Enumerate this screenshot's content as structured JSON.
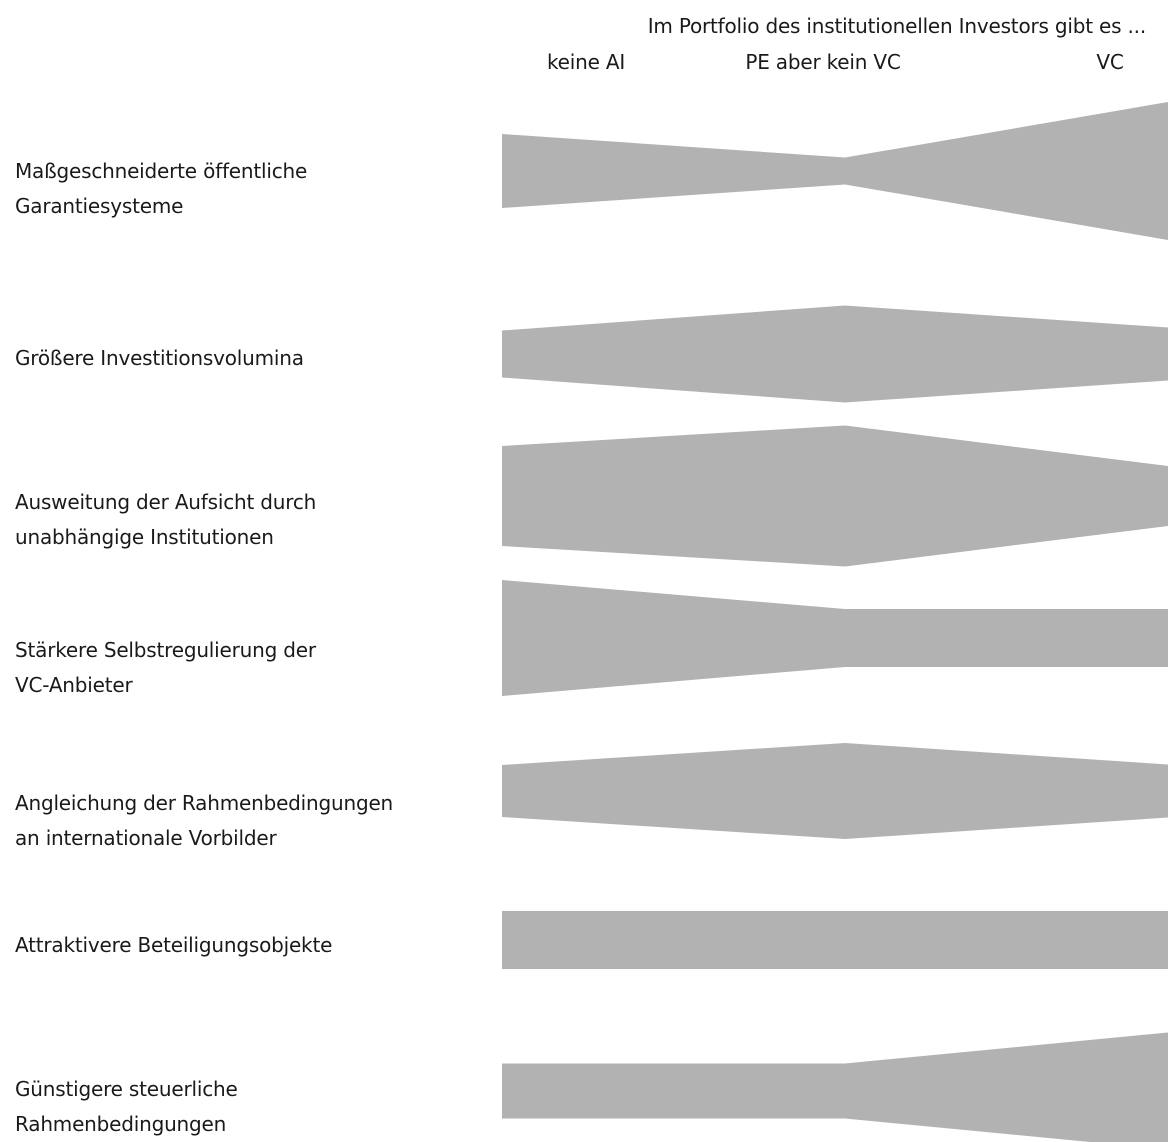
{
  "chart_data": {
    "type": "area",
    "title": "Im Portfolio des institutionellen Investors gibt es ...",
    "categories": [
      "keine AI",
      "PE aber kein VC",
      "VC"
    ],
    "series": [
      {
        "name": "Maßgeschneiderte öffentliche Garantiesysteme",
        "label": "Maßgeschneiderte öffentliche\nGarantiesysteme",
        "values": [
          74,
          27,
          138
        ]
      },
      {
        "name": "Größere Investitionsvolumina",
        "label": "Größere Investitionsvolumina",
        "values": [
          47,
          97,
          53
        ]
      },
      {
        "name": "Ausweitung der Aufsicht durch unabhängige Institutionen",
        "label": "Ausweitung der Aufsicht durch\nunabhängige Institutionen",
        "values": [
          100,
          141,
          60
        ]
      },
      {
        "name": "Stärkere Selbstregulierung der VC-Anbieter",
        "label": "Stärkere Selbstregulierung der\nVC-Anbieter",
        "values": [
          116,
          58,
          58
        ]
      },
      {
        "name": "Angleichung der Rahmenbedingungen an internationale Vorbilder",
        "label": "Angleichung der Rahmenbedingungen\nan internationale Vorbilder",
        "values": [
          52,
          96,
          53
        ]
      },
      {
        "name": "Attraktivere Beteiligungsobjekte",
        "label": "Attraktivere Beteiligungsobjekte",
        "values": [
          58,
          58,
          58
        ]
      },
      {
        "name": "Günstigere steuerliche Rahmenbedingungen",
        "label": "Günstigere steuerliche\nRahmenbedingungen",
        "values": [
          55,
          55,
          117
        ]
      }
    ],
    "grid": false,
    "legend": "none"
  },
  "colors": {
    "band": "#b2b2b2",
    "text": "#1a1a1a"
  }
}
